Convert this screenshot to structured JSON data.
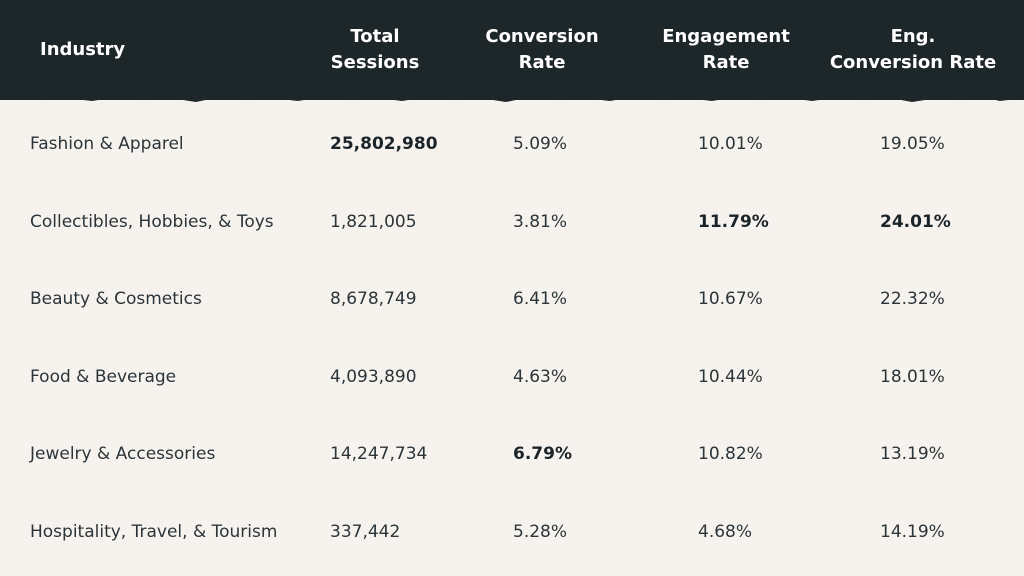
{
  "chart_data": {
    "type": "table",
    "columns": [
      "Industry",
      "Total\nSessions",
      "Conversion\nRate",
      "Engagement\nRate",
      "Eng.\nConversion Rate"
    ],
    "rows": [
      {
        "cells": [
          "Fashion & Apparel",
          "25,802,980",
          "5.09%",
          "10.01%",
          "19.05%"
        ],
        "highlight": [
          false,
          true,
          false,
          false,
          false
        ]
      },
      {
        "cells": [
          "Collectibles, Hobbies, & Toys",
          "1,821,005",
          "3.81%",
          "11.79%",
          "24.01%"
        ],
        "highlight": [
          false,
          false,
          false,
          true,
          true
        ]
      },
      {
        "cells": [
          "Beauty & Cosmetics",
          "8,678,749",
          "6.41%",
          "10.67%",
          "22.32%"
        ],
        "highlight": [
          false,
          false,
          false,
          false,
          false
        ]
      },
      {
        "cells": [
          "Food & Beverage",
          "4,093,890",
          "4.63%",
          "10.44%",
          "18.01%"
        ],
        "highlight": [
          false,
          false,
          false,
          false,
          false
        ]
      },
      {
        "cells": [
          "Jewelry & Accessories",
          "14,247,734",
          "6.79%",
          "10.82%",
          "13.19%"
        ],
        "highlight": [
          false,
          false,
          true,
          false,
          false
        ]
      },
      {
        "cells": [
          "Hospitality, Travel, & Tourism",
          "337,442",
          "5.28%",
          "4.68%",
          "14.19%"
        ],
        "highlight": [
          false,
          false,
          false,
          false,
          false
        ]
      }
    ]
  },
  "colors": {
    "header_bg": "#1d2628",
    "body_bg": "#f6f3ef",
    "text": "#2b3438"
  }
}
